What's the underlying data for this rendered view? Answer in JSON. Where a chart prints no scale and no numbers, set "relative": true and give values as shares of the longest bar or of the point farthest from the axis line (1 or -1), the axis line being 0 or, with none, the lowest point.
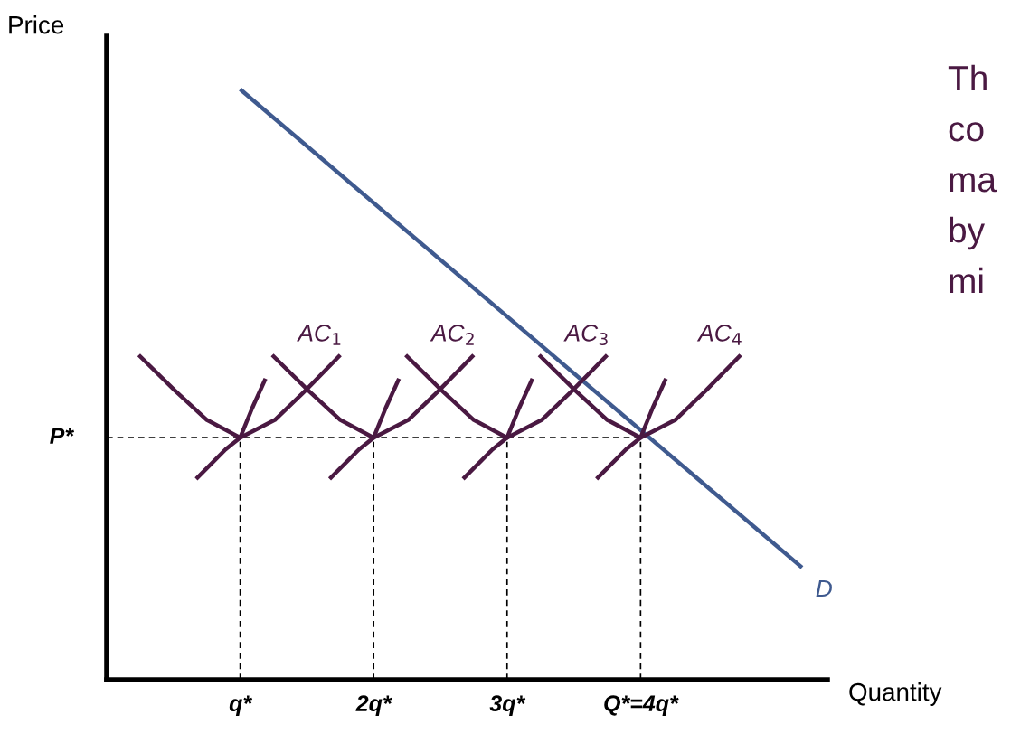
{
  "chart_data": {
    "type": "line",
    "relative": true,
    "xlabel": "Quantity",
    "ylabel": "Price",
    "tick_labels": "x",
    "xlim": [
      0,
      5.4
    ],
    "xticks": [
      {
        "value": 1,
        "label": "q*"
      },
      {
        "value": 2,
        "label": "2q*"
      },
      {
        "value": 3,
        "label": "3q*"
      },
      {
        "value": 4,
        "label": "Q*=4q*"
      }
    ],
    "series": [
      {
        "name": "D",
        "color": "#3f5a8f",
        "x": [
          1.0,
          5.21
        ],
        "values": [
          1.0,
          0.19
        ]
      },
      {
        "name": "AC$_{1}$",
        "color": "#4a1942",
        "x": [
          0.24,
          0.51,
          0.75,
          1.0,
          1.26,
          1.49,
          1.75
        ],
        "values": [
          0.55,
          0.49,
          0.44,
          0.41,
          0.44,
          0.49,
          0.55
        ]
      },
      {
        "name": "AC$_{2}$",
        "color": "#4a1942",
        "x": [
          1.24,
          1.51,
          1.75,
          2.0,
          2.26,
          2.49,
          2.75
        ],
        "values": [
          0.55,
          0.49,
          0.44,
          0.41,
          0.44,
          0.49,
          0.55
        ]
      },
      {
        "name": "AC$_{3}$",
        "color": "#4a1942",
        "x": [
          2.24,
          2.51,
          2.75,
          3.0,
          3.26,
          3.49,
          3.75
        ],
        "values": [
          0.55,
          0.49,
          0.44,
          0.41,
          0.44,
          0.49,
          0.55
        ]
      },
      {
        "name": "AC$_{4}$",
        "color": "#4a1942",
        "x": [
          3.24,
          3.51,
          3.75,
          4.0,
          4.26,
          4.49,
          4.75
        ],
        "values": [
          0.55,
          0.49,
          0.44,
          0.41,
          0.44,
          0.49,
          0.55
        ]
      },
      {
        "color": "#4a1942",
        "x": [
          0.67,
          0.89,
          1.0,
          1.09,
          1.19
        ],
        "values": [
          0.34,
          0.39,
          0.41,
          0.46,
          0.51
        ]
      },
      {
        "color": "#4a1942",
        "x": [
          1.67,
          1.89,
          2.0,
          2.09,
          2.19
        ],
        "values": [
          0.34,
          0.39,
          0.41,
          0.46,
          0.51
        ]
      },
      {
        "color": "#4a1942",
        "x": [
          2.67,
          2.89,
          3.0,
          3.09,
          3.19
        ],
        "values": [
          0.34,
          0.39,
          0.41,
          0.46,
          0.51
        ]
      },
      {
        "color": "#4a1942",
        "x": [
          3.67,
          3.89,
          4.0,
          4.09,
          4.19
        ],
        "values": [
          0.34,
          0.39,
          0.41,
          0.46,
          0.51
        ]
      }
    ],
    "ref_lines": [
      {
        "axis": "y",
        "value": 0.41,
        "label": "P*",
        "color": "#000000",
        "line_style": "dashed"
      },
      {
        "axis": "x",
        "value": 1,
        "label": null,
        "color": "#000000",
        "line_style": "dashed"
      },
      {
        "axis": "x",
        "value": 2,
        "label": null,
        "color": "#000000",
        "line_style": "dashed"
      },
      {
        "axis": "x",
        "value": 3,
        "label": null,
        "color": "#000000",
        "line_style": "dashed"
      },
      {
        "axis": "x",
        "value": 4,
        "label": null,
        "color": "#000000",
        "line_style": "dashed"
      }
    ],
    "annotations": [
      "Th",
      "co",
      "ma",
      "by",
      "mi"
    ]
  }
}
